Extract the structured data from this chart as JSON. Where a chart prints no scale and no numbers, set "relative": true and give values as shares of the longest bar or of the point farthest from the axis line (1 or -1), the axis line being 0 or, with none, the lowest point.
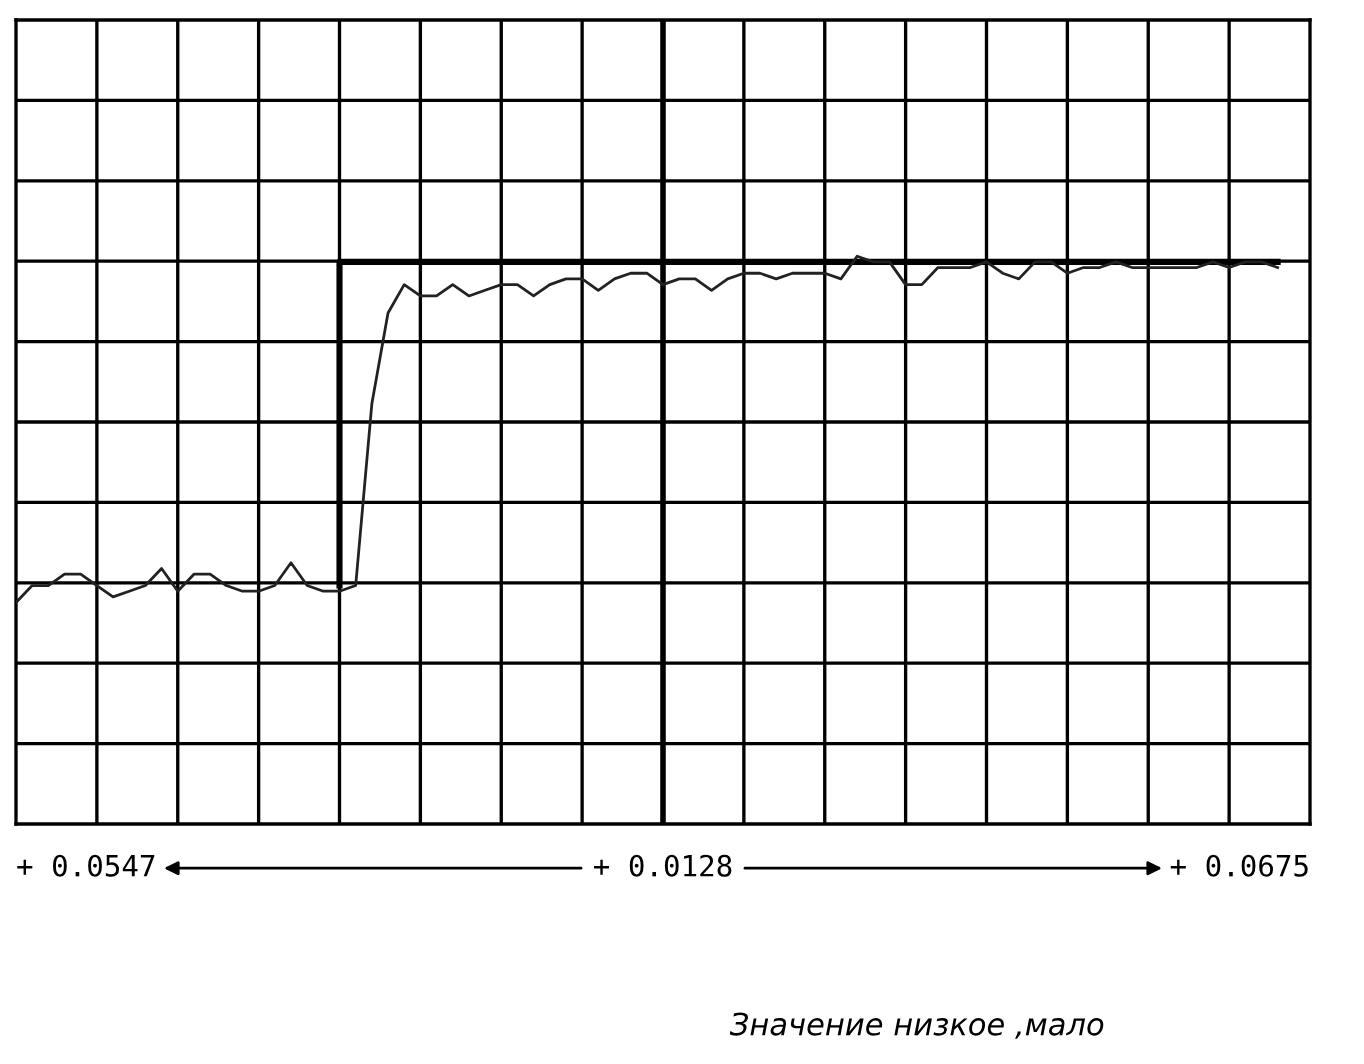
{
  "chart_data": {
    "type": "line",
    "relative": true,
    "grid": true,
    "legend": false,
    "categories": [
      null,
      null,
      null,
      null,
      null,
      null,
      null,
      null,
      null,
      null,
      null,
      null,
      null,
      null,
      null,
      null,
      null,
      null,
      null,
      null,
      null,
      null,
      null,
      null,
      null,
      null,
      null,
      null,
      null,
      null,
      null,
      null,
      null,
      null,
      null,
      null,
      null,
      null,
      null,
      null,
      null,
      null,
      null,
      null,
      null,
      null,
      null,
      null,
      null,
      null,
      null,
      null,
      null,
      null,
      null,
      null,
      null,
      null,
      null,
      null,
      null,
      null,
      null,
      null,
      null,
      null,
      null,
      null,
      null,
      null,
      null,
      null,
      null,
      null,
      null,
      null,
      null,
      null,
      null
    ],
    "series": [
      {
        "color": "#222222",
        "values": [
          0.39,
          0.42,
          0.42,
          0.44,
          0.44,
          0.42,
          0.4,
          0.41,
          0.42,
          0.45,
          0.41,
          0.44,
          0.44,
          0.42,
          0.41,
          0.41,
          0.42,
          0.46,
          0.42,
          0.41,
          0.41,
          0.42,
          0.74,
          0.9,
          0.95,
          0.93,
          0.93,
          0.95,
          0.93,
          0.94,
          0.95,
          0.95,
          0.93,
          0.95,
          0.96,
          0.96,
          0.94,
          0.96,
          0.97,
          0.97,
          0.95,
          0.96,
          0.96,
          0.94,
          0.96,
          0.97,
          0.97,
          0.96,
          0.97,
          0.97,
          0.97,
          0.96,
          1.0,
          0.99,
          0.99,
          0.95,
          0.95,
          0.98,
          0.98,
          0.98,
          0.99,
          0.97,
          0.96,
          0.99,
          0.99,
          0.97,
          0.98,
          0.98,
          0.99,
          0.98,
          0.98,
          0.98,
          0.98,
          0.98,
          0.99,
          0.98,
          0.99,
          0.99,
          0.98
        ]
      },
      {
        "type": "step",
        "color": "#000000",
        "values": [
          null,
          null,
          null,
          null,
          null,
          null,
          null,
          null,
          null,
          null,
          null,
          null,
          null,
          null,
          null,
          null,
          null,
          null,
          null,
          null,
          0.42,
          0.99,
          0.99,
          0.99,
          0.99,
          0.99,
          0.99,
          0.99,
          0.99,
          0.99,
          0.99,
          0.99,
          0.99,
          0.99,
          0.99,
          0.99,
          0.99,
          0.99,
          0.99,
          0.99,
          0.99,
          0.99,
          0.99,
          0.99,
          0.99,
          0.99,
          0.99,
          0.99,
          0.99,
          0.99,
          0.99,
          0.99,
          0.99,
          0.99,
          0.99,
          0.99,
          0.99,
          0.99,
          0.99,
          0.99,
          0.99,
          0.99,
          0.99,
          0.99,
          0.99,
          0.99,
          0.99,
          0.99,
          0.99,
          0.99,
          0.99,
          0.99,
          0.99,
          0.99,
          0.99,
          0.99,
          0.99,
          0.99,
          0.99
        ]
      }
    ],
    "annotations": [
      "+ 0.0547",
      "+ 0.0128",
      "+ 0.0675",
      "Значение низкое ,мало"
    ]
  }
}
